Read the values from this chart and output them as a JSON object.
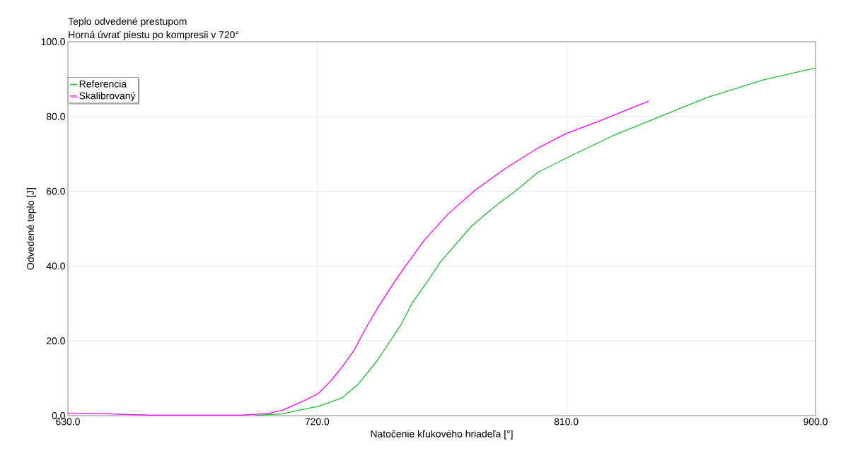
{
  "chart_data": {
    "type": "line",
    "title": "Teplo odvedené prestupom",
    "subtitle": "Horná úvrať piestu po kompresii v 720°",
    "xlabel": "Natočenie kľukového hriadeľa [°]",
    "ylabel": "Odvedené teplo [J]",
    "xlim": [
      630,
      900
    ],
    "ylim": [
      0,
      100
    ],
    "xticks": [
      {
        "value": 630,
        "label": "630.0"
      },
      {
        "value": 720,
        "label": "720.0"
      },
      {
        "value": 810,
        "label": "810.0"
      },
      {
        "value": 900,
        "label": "900.0"
      }
    ],
    "yticks": [
      {
        "value": 0,
        "label": "0.0"
      },
      {
        "value": 20,
        "label": "20.0"
      },
      {
        "value": 40,
        "label": "40.0"
      },
      {
        "value": 60,
        "label": "60.0"
      },
      {
        "value": 80,
        "label": "80.0"
      },
      {
        "value": 100,
        "label": "100.0"
      }
    ],
    "grid": true,
    "legend": "top left",
    "marker": "none",
    "line_style": "solid",
    "series": [
      {
        "name": "Referencia",
        "color": "#22bb33",
        "x": [
          697.4,
          699.1,
          707.6,
          711.9,
          720.4,
          728.9,
          734.8,
          741.7,
          750.2,
          754.4,
          759.5,
          764.6,
          775.8,
          784.3,
          792.7,
          799.6,
          809.8,
          826.9,
          843.8,
          860.9,
          881.3,
          900
        ],
        "values": [
          0,
          0.1,
          0.5,
          1.2,
          2.5,
          4.7,
          8.4,
          14.7,
          24.2,
          30.2,
          35.5,
          41.2,
          50.7,
          56,
          60.7,
          65,
          68.8,
          74.9,
          80,
          85.1,
          89.8,
          93
        ]
      },
      {
        "name": "Skalibrovaný",
        "color": "#ff00ff",
        "x": [
          630,
          643.8,
          651.5,
          661.7,
          692.3,
          702.5,
          707.6,
          715.3,
          720.4,
          724.7,
          728.9,
          733.2,
          737.5,
          741.7,
          747.7,
          751.9,
          758.7,
          767.2,
          777.4,
          788.6,
          799.6,
          809.8,
          822.6,
          839.7
        ],
        "values": [
          0.7,
          0.5,
          0.3,
          0.1,
          0.1,
          0.6,
          1.5,
          4,
          5.9,
          9.1,
          12.9,
          17.3,
          23.3,
          28.6,
          35.5,
          40,
          46.9,
          53.9,
          60.5,
          66.4,
          71.5,
          75.4,
          79,
          84.1
        ]
      }
    ]
  }
}
